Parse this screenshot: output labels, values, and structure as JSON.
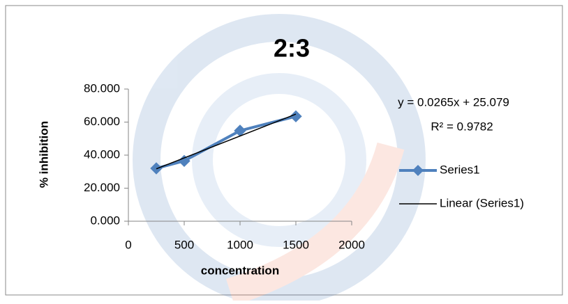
{
  "chart_data": {
    "type": "line",
    "title": "2:3",
    "x_label": "concentration",
    "y_label": "% inhibition",
    "xlim": [
      0,
      2000
    ],
    "xticks": [
      0,
      500,
      1000,
      1500,
      2000
    ],
    "ylim": [
      0,
      80
    ],
    "yticks": [
      {
        "value": 0,
        "label": "0.000"
      },
      {
        "value": 20,
        "label": "20.000"
      },
      {
        "value": 40,
        "label": "40.000"
      },
      {
        "value": 60,
        "label": "60.000"
      },
      {
        "value": 80,
        "label": "80.000"
      }
    ],
    "series": [
      {
        "name": "Series1",
        "color": "#4f81bd",
        "marker": "diamond",
        "x": [
          250,
          500,
          1000,
          1500
        ],
        "values": [
          32.0,
          36.5,
          54.8,
          63.5
        ]
      },
      {
        "name": "Linear (Series1)",
        "color": "#000000",
        "marker": "none",
        "x": [
          250,
          1500
        ],
        "values": [
          31.7,
          64.8
        ]
      }
    ],
    "annotations": [
      "y = 0.0265x + 25.079",
      "R² = 0.9782"
    ],
    "legend": "right",
    "grid": false
  }
}
